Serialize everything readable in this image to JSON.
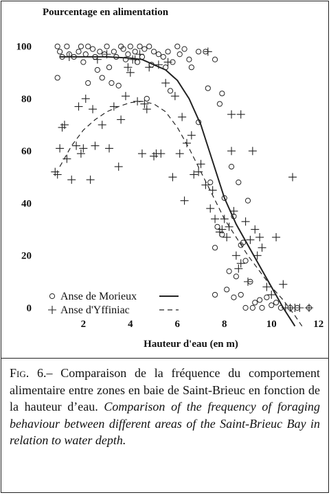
{
  "chart_data": {
    "type": "scatter",
    "ylabel": "Pourcentage en alimentation",
    "xlabel": "Hauteur d'eau (en m)",
    "xlim": [
      0.5,
      12.3
    ],
    "ylim": [
      -8,
      107
    ],
    "xticks": [
      2,
      4,
      6,
      8,
      10,
      12
    ],
    "yticks": [
      0,
      20,
      40,
      60,
      80,
      100
    ],
    "grid": false,
    "legend": "lower left",
    "series": [
      {
        "name": "Anse de Morieux",
        "marker": "circle",
        "color": "#222222",
        "dash": "solid",
        "x": [
          0.9,
          1.0,
          1.1,
          1.3,
          1.4,
          1.6,
          1.8,
          1.9,
          2.0,
          2.1,
          2.2,
          2.4,
          2.5,
          2.6,
          2.7,
          2.9,
          3.0,
          3.1,
          3.2,
          3.3,
          3.4,
          3.6,
          3.7,
          3.8,
          3.9,
          4.0,
          4.2,
          4.3,
          4.4,
          4.5,
          4.6,
          4.8,
          4.9,
          5.0,
          5.2,
          5.4,
          5.5,
          5.6,
          5.8,
          6.0,
          6.1,
          6.3,
          6.5,
          6.6,
          6.9,
          0.9,
          2.2,
          2.8,
          3.5,
          4.7,
          5.7,
          7.2,
          7.6,
          7.3,
          7.8,
          7.9,
          6.9,
          7.4,
          7.7,
          7.6,
          7.9,
          8.0,
          8.3,
          8.4,
          8.2,
          8.5,
          8.6,
          8.7,
          8.8,
          9.0,
          8.9,
          8.4,
          8.7,
          9.1,
          9.3,
          9.5,
          9.8,
          10.0,
          10.2,
          10.8,
          11.1,
          11.6,
          8.1,
          7.6,
          8.9,
          9.2,
          9.6,
          10.4
        ],
        "values": [
          100,
          98,
          96,
          100,
          97,
          96,
          98,
          100,
          94,
          97,
          100,
          99,
          96,
          91,
          98,
          97,
          100,
          92,
          86,
          98,
          96,
          100,
          99,
          95,
          97,
          100,
          98,
          94,
          100,
          96,
          99,
          100,
          93,
          98,
          97,
          96,
          92,
          98,
          94,
          100,
          97,
          99,
          95,
          92,
          98,
          88,
          86,
          88,
          85,
          80,
          83,
          98,
          95,
          84,
          78,
          82,
          71,
          48,
          31,
          23,
          28,
          42,
          54,
          35,
          14,
          12,
          48,
          24,
          25,
          41,
          18,
          4,
          5,
          10,
          2,
          3,
          4,
          1,
          2,
          0,
          0,
          0,
          7,
          5,
          0,
          0,
          0,
          0
        ],
        "fit": {
          "x": [
            1.0,
            2.0,
            3.0,
            4.0,
            4.5,
            5.0,
            5.5,
            6.0,
            6.5,
            7.0,
            7.5,
            8.0,
            8.5,
            9.0,
            9.5,
            10.0,
            10.5,
            11.0
          ],
          "values": [
            96,
            96,
            96,
            95.5,
            95,
            93,
            91,
            87,
            80,
            70,
            56,
            42,
            32,
            24,
            16,
            8,
            0,
            -7
          ]
        }
      },
      {
        "name": "Anse d'Yffiniac",
        "marker": "plus",
        "color": "#222222",
        "dash": "dashed",
        "x": [
          0.8,
          0.9,
          1.0,
          1.1,
          1.2,
          1.3,
          1.5,
          1.7,
          1.8,
          1.9,
          2.0,
          2.1,
          2.3,
          2.5,
          2.4,
          2.8,
          3.1,
          3.3,
          3.5,
          3.6,
          3.8,
          4.0,
          4.1,
          4.3,
          4.4,
          4.5,
          4.6,
          4.7,
          4.8,
          5.0,
          5.1,
          5.3,
          5.5,
          5.6,
          5.8,
          5.9,
          6.1,
          6.2,
          6.3,
          6.4,
          6.6,
          6.7,
          6.9,
          7.0,
          7.2,
          7.4,
          7.5,
          7.6,
          7.8,
          7.9,
          8.0,
          8.1,
          8.2,
          8.3,
          8.4,
          8.5,
          8.6,
          8.7,
          8.9,
          9.0,
          9.1,
          9.2,
          9.3,
          9.4,
          9.5,
          9.6,
          9.8,
          10.0,
          10.2,
          10.5,
          10.6,
          10.8,
          10.9,
          11.0,
          11.2,
          11.6,
          7.3,
          8.3,
          8.7,
          4.2,
          3.9,
          5.2,
          2.6,
          1.4,
          3.0
        ],
        "values": [
          52,
          51,
          61,
          69,
          70,
          57,
          49,
          62,
          77,
          59,
          61,
          80,
          49,
          62,
          76,
          70,
          61,
          77,
          54,
          72,
          81,
          90,
          95,
          79,
          97,
          59,
          78,
          76,
          92,
          58,
          59,
          59,
          86,
          94,
          50,
          81,
          59,
          73,
          41,
          63,
          66,
          51,
          52,
          55,
          47,
          38,
          45,
          34,
          29,
          30,
          34,
          27,
          31,
          60,
          37,
          20,
          15,
          17,
          33,
          10,
          26,
          60,
          30,
          20,
          27,
          23,
          8,
          5,
          27,
          9,
          0,
          0,
          50,
          0,
          0,
          0,
          98,
          74,
          74,
          95,
          92,
          93,
          95,
          96,
          97
        ],
        "fit": {
          "x": [
            1.0,
            1.5,
            2.0,
            2.5,
            3.0,
            3.5,
            4.0,
            4.5,
            5.0,
            5.5,
            6.0,
            6.5,
            7.0,
            7.5,
            8.0,
            8.5,
            9.0,
            9.5,
            10.0,
            10.5,
            11.0,
            11.3
          ],
          "values": [
            54,
            62,
            68,
            72,
            75,
            77,
            78.5,
            79,
            78,
            75,
            69,
            61,
            52,
            43,
            34,
            27,
            20,
            14,
            8,
            3,
            -3,
            -7
          ]
        }
      }
    ],
    "caption": {
      "label": "Fig. 6.–",
      "french": "Comparaison de la fréquence du comportement alimentaire entre zones en baie de Saint-Brieuc en fonction de la hauteur d’eau.",
      "english": "Comparison of the frequency of foraging behaviour between different areas of the Saint-Brieuc Bay in relation to water depth."
    }
  }
}
